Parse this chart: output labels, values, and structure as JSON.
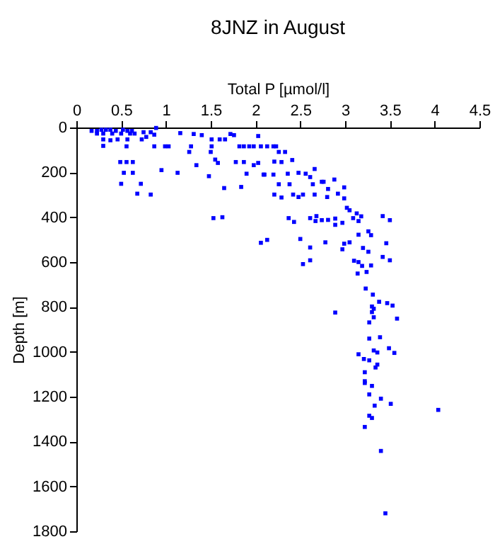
{
  "chart_data": {
    "type": "scatter",
    "title": "8JNZ in August",
    "xlabel": "Total P [µmol/l]",
    "ylabel": "Depth [m]",
    "xlim": [
      0,
      4.5
    ],
    "xticks": [
      0,
      0.5,
      1,
      1.5,
      2,
      2.5,
      3,
      3.5,
      4,
      4.5
    ],
    "ylim": [
      1800,
      0
    ],
    "yticks": [
      0,
      200,
      400,
      600,
      800,
      1000,
      1200,
      1400,
      1600,
      1800
    ],
    "grid": false,
    "marker": "square",
    "series": [
      {
        "color": "#0000ff",
        "x": [
          0.17,
          0.23,
          0.28,
          0.33,
          0.38,
          0.44,
          0.52,
          0.57,
          0.62,
          0.65,
          0.3,
          0.4,
          0.5,
          0.6,
          0.23,
          0.75,
          0.78,
          0.73,
          0.83,
          0.87,
          0.89,
          0.3,
          0.38,
          0.3,
          0.46,
          0.57,
          0.56,
          0.87,
          0.99,
          1.03,
          1.16,
          1.31,
          1.4,
          1.28,
          1.26,
          1.34,
          1.51,
          1.51,
          1.5,
          1.6,
          1.66,
          1.72,
          1.76,
          1.58,
          1.55,
          1.48,
          1.65,
          1.82,
          1.87,
          1.93,
          2.03,
          1.98,
          2.06,
          2.13,
          2.23,
          1.78,
          1.87,
          2.03,
          2.26,
          2.29,
          1.9,
          2.1,
          1.84,
          2.29,
          0.49,
          0.56,
          0.63,
          0.53,
          0.63,
          0.5,
          0.72,
          0.68,
          0.83,
          0.95,
          1.13,
          1.53,
          1.63,
          2.2,
          2.33,
          2.21,
          2.41,
          1.98,
          2.09,
          2.2,
          2.36,
          2.48,
          2.56,
          2.66,
          2.61,
          2.74,
          2.76,
          2.88,
          2.64,
          2.81,
          2.99,
          2.26,
          2.38,
          2.21,
          2.42,
          2.48,
          2.53,
          2.66,
          2.8,
          2.92,
          2.99,
          3.02,
          3.05,
          3.13,
          2.37,
          2.61,
          2.68,
          2.81,
          2.89,
          3.09,
          3.42,
          2.43,
          2.67,
          2.74,
          2.89,
          2.97,
          3.15,
          3.18,
          3.5,
          3.26,
          3.29,
          3.15,
          2.06,
          2.13,
          2.5,
          2.61,
          2.78,
          2.99,
          3.05,
          2.97,
          3.2,
          3.26,
          3.46,
          3.42,
          3.5,
          3.1,
          3.15,
          3.19,
          3.29,
          2.61,
          2.53,
          3.14,
          3.24,
          3.23,
          3.31,
          3.38,
          3.47,
          3.53,
          3.3,
          3.32,
          3.3,
          3.32,
          3.58,
          2.89,
          3.27,
          3.27,
          3.39,
          3.15,
          3.32,
          3.36,
          3.49,
          3.55,
          3.21,
          3.27,
          3.36,
          3.34,
          3.22,
          3.22,
          3.22,
          3.3,
          3.27,
          3.4,
          3.33,
          3.51,
          4.04,
          3.27,
          3.3,
          3.22,
          3.4,
          3.45
        ],
        "values": [
          15,
          15,
          10,
          10,
          10,
          15,
          10,
          15,
          15,
          27,
          27,
          27,
          27,
          27,
          27,
          21,
          42,
          53,
          21,
          32,
          2,
          53,
          57,
          82,
          53,
          53,
          84,
          84,
          84,
          84,
          25,
          29,
          34,
          84,
          109,
          168,
          53,
          84,
          109,
          53,
          53,
          29,
          34,
          158,
          143,
          217,
          270,
          84,
          84,
          84,
          38,
          84,
          84,
          84,
          84,
          154,
          154,
          158,
          109,
          154,
          206,
          210,
          265,
          312,
          154,
          154,
          154,
          202,
          202,
          251,
          251,
          295,
          299,
          190,
          202,
          404,
          400,
          84,
          109,
          152,
          145,
          168,
          210,
          210,
          206,
          202,
          206,
          185,
          221,
          242,
          242,
          232,
          253,
          274,
          267,
          253,
          253,
          299,
          299,
          310,
          299,
          299,
          310,
          295,
          316,
          358,
          369,
          383,
          404,
          404,
          395,
          412,
          406,
          404,
          395,
          421,
          417,
          413,
          434,
          425,
          417,
          396,
          413,
          463,
          480,
          478,
          514,
          501,
          497,
          535,
          512,
          518,
          512,
          543,
          537,
          554,
          516,
          577,
          592,
          594,
          600,
          617,
          615,
          592,
          609,
          651,
          644,
          718,
          745,
          777,
          783,
          794,
          798,
          808,
          823,
          846,
          852,
          825,
          869,
          941,
          935,
          1011,
          994,
          1003,
          984,
          1005,
          1032,
          1038,
          1057,
          1070,
          1091,
          1131,
          1139,
          1152,
          1190,
          1209,
          1240,
          1232,
          1259,
          1285,
          1295,
          1335,
          1442,
          1720
        ]
      }
    ]
  }
}
